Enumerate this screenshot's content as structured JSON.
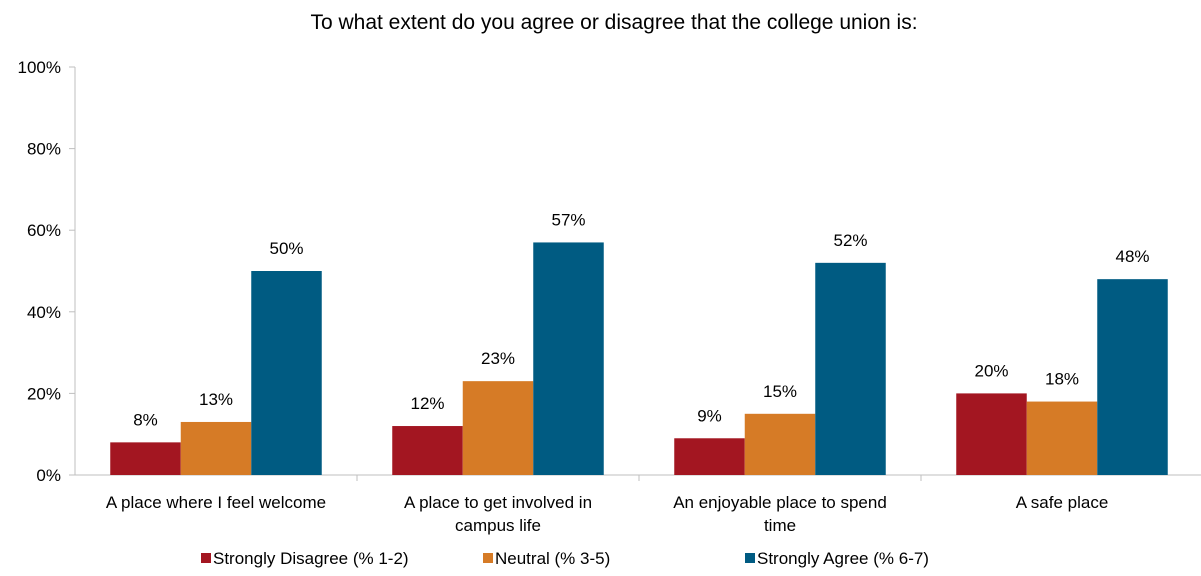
{
  "chart_data": {
    "type": "bar",
    "title": "To what extent do you agree or disagree that the college union is:",
    "categories": [
      [
        "A place where I feel welcome"
      ],
      [
        "A place to get involved in",
        "campus life"
      ],
      [
        "An enjoyable place to spend",
        "time"
      ],
      [
        "A safe place"
      ]
    ],
    "series": [
      {
        "name": "Strongly Disagree (% 1-2)",
        "color": "#a31621",
        "values": [
          8,
          12,
          9,
          20
        ]
      },
      {
        "name": "Neutral (% 3-5)",
        "color": "#d67b26",
        "values": [
          13,
          23,
          15,
          18
        ]
      },
      {
        "name": "Strongly Agree (% 6-7)",
        "color": "#005b82",
        "values": [
          50,
          57,
          52,
          48
        ]
      }
    ],
    "ylim": [
      0,
      100
    ],
    "yticks": [
      0,
      20,
      40,
      60,
      80,
      100
    ],
    "value_suffix": "%",
    "grid": false,
    "legend": "bottom"
  }
}
